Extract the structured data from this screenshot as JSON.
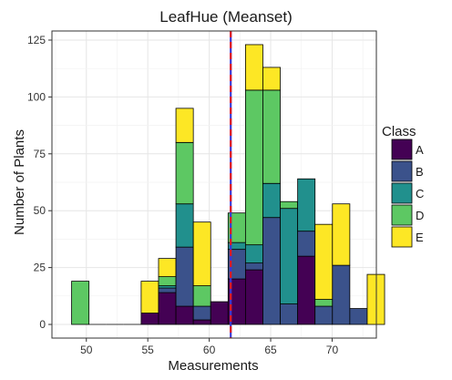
{
  "chart_data": {
    "type": "bar",
    "stacked": true,
    "title": "LeafHue (Meanset)",
    "xlabel": "Measurements",
    "ylabel": "Number of Plants",
    "xlim": [
      47.2,
      73.6
    ],
    "ylim": [
      -6,
      129
    ],
    "x_ticks": [
      50,
      55,
      60,
      65,
      70
    ],
    "y_ticks": [
      0,
      25,
      50,
      75,
      100,
      125
    ],
    "bin_width": 1.415,
    "bin_start": 48.8,
    "grid": true,
    "legend_title": "Class",
    "legend_position": "right",
    "mean_line": {
      "x": 61.75,
      "colors": [
        "#e41a1c",
        "#3a3ad6"
      ],
      "style": "dashed"
    },
    "series": [
      {
        "name": "A",
        "color": "#440154",
        "values": [
          0,
          0,
          0,
          0,
          5,
          14,
          8,
          2,
          10,
          20,
          24,
          0,
          0,
          30,
          0,
          0,
          0,
          0
        ]
      },
      {
        "name": "B",
        "color": "#3b528b",
        "values": [
          0,
          0,
          0,
          0,
          0,
          2,
          26,
          6,
          0,
          13,
          3,
          47,
          9,
          11,
          8,
          26,
          7,
          0
        ]
      },
      {
        "name": "C",
        "color": "#21908d",
        "values": [
          0,
          0,
          0,
          0,
          0,
          1,
          19,
          0,
          0,
          3,
          8,
          15,
          42,
          23,
          0,
          0,
          0,
          0
        ]
      },
      {
        "name": "D",
        "color": "#5dc863",
        "values": [
          19,
          0,
          0,
          0,
          0,
          4,
          27,
          9,
          0,
          13,
          68,
          41,
          3,
          0,
          3,
          0,
          0,
          0
        ]
      },
      {
        "name": "E",
        "color": "#fde725",
        "values": [
          0,
          0,
          0,
          0,
          14,
          8,
          15,
          28,
          0,
          0,
          20,
          10,
          0,
          0,
          33,
          27,
          0,
          22
        ]
      }
    ]
  }
}
